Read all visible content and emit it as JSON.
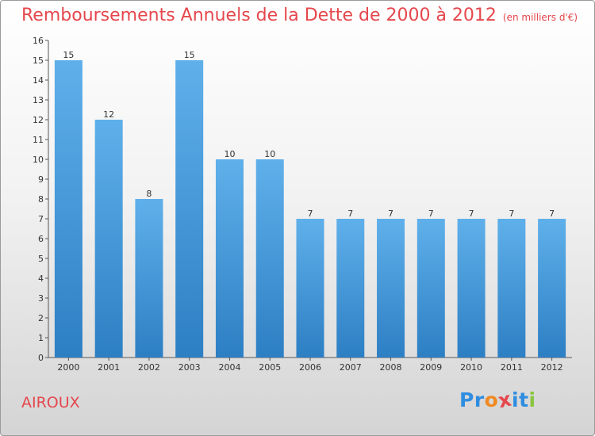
{
  "chart_data": {
    "type": "bar",
    "title": "Remboursements Annuels de la Dette de 2000 à 2012",
    "unit_label": "(en milliers d'€)",
    "xlabel": "",
    "ylabel": "",
    "categories": [
      "2000",
      "2001",
      "2002",
      "2003",
      "2004",
      "2005",
      "2006",
      "2007",
      "2008",
      "2009",
      "2010",
      "2011",
      "2012"
    ],
    "values": [
      15,
      12,
      8,
      15,
      10,
      10,
      7,
      7,
      7,
      7,
      7,
      7,
      7
    ],
    "ylim": [
      0,
      16
    ],
    "yticks": [
      0,
      1,
      2,
      3,
      4,
      5,
      6,
      7,
      8,
      9,
      10,
      11,
      12,
      13,
      14,
      15,
      16
    ],
    "grid": false,
    "bar_color": "#4e9fdf"
  },
  "footer": {
    "commune": "AIROUX"
  },
  "logo": {
    "text": "Proxiti",
    "colors": [
      "#2f8de0",
      "#2f8de0",
      "#f08a22",
      "#e5474d",
      "#2f8de0",
      "#2f8de0",
      "#8ac640"
    ]
  }
}
